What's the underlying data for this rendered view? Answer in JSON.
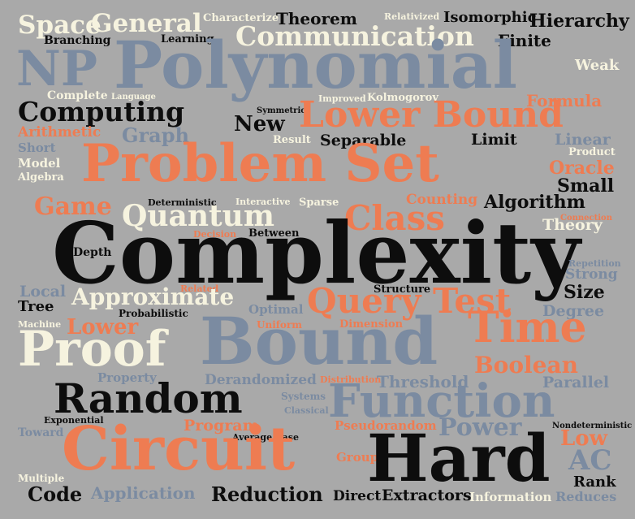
{
  "palette": {
    "background": "#a9a9a9",
    "black": "#0d0d0d",
    "orange": "#ee7c52",
    "slate": "#7b8ba1",
    "cream": "#f6f3df"
  },
  "words": [
    {
      "text": "Space",
      "color": "cream"
    },
    {
      "text": "General",
      "color": "cream"
    },
    {
      "text": "Characterize",
      "color": "cream"
    },
    {
      "text": "Theorem",
      "color": "black"
    },
    {
      "text": "Relativized",
      "color": "cream"
    },
    {
      "text": "Isomorphic",
      "color": "black"
    },
    {
      "text": "Hierarchy",
      "color": "black"
    },
    {
      "text": "Branching",
      "color": "black"
    },
    {
      "text": "Learning",
      "color": "black"
    },
    {
      "text": "Communication",
      "color": "cream"
    },
    {
      "text": "Finite",
      "color": "black"
    },
    {
      "text": "NP",
      "color": "slate"
    },
    {
      "text": "Polynomial",
      "color": "slate"
    },
    {
      "text": "Weak",
      "color": "cream"
    },
    {
      "text": "Complete",
      "color": "cream"
    },
    {
      "text": "Language",
      "color": "cream"
    },
    {
      "text": "Improved",
      "color": "cream"
    },
    {
      "text": "Kolmogorov",
      "color": "cream"
    },
    {
      "text": "Formula",
      "color": "orange"
    },
    {
      "text": "Computing",
      "color": "black"
    },
    {
      "text": "Symmetric",
      "color": "black"
    },
    {
      "text": "New",
      "color": "black"
    },
    {
      "text": "Lower Bound",
      "color": "orange"
    },
    {
      "text": "Arithmetic",
      "color": "orange"
    },
    {
      "text": "Graph",
      "color": "slate"
    },
    {
      "text": "Short",
      "color": "slate"
    },
    {
      "text": "Result",
      "color": "cream"
    },
    {
      "text": "Separable",
      "color": "black"
    },
    {
      "text": "Limit",
      "color": "black"
    },
    {
      "text": "Linear",
      "color": "slate"
    },
    {
      "text": "Model",
      "color": "cream"
    },
    {
      "text": "Product",
      "color": "cream"
    },
    {
      "text": "Algebra",
      "color": "cream"
    },
    {
      "text": "Problem Set",
      "color": "orange"
    },
    {
      "text": "Oracle",
      "color": "orange"
    },
    {
      "text": "Small",
      "color": "black"
    },
    {
      "text": "Deterministic",
      "color": "black"
    },
    {
      "text": "Interactive",
      "color": "cream"
    },
    {
      "text": "Sparse",
      "color": "cream"
    },
    {
      "text": "Counting",
      "color": "orange"
    },
    {
      "text": "Algorithm",
      "color": "black"
    },
    {
      "text": "Game",
      "color": "orange"
    },
    {
      "text": "Quantum",
      "color": "cream"
    },
    {
      "text": "Class",
      "color": "orange"
    },
    {
      "text": "Connection",
      "color": "orange"
    },
    {
      "text": "Theory",
      "color": "cream"
    },
    {
      "text": "Decision",
      "color": "orange"
    },
    {
      "text": "Between",
      "color": "black"
    },
    {
      "text": "Depth",
      "color": "black"
    },
    {
      "text": "Complexity",
      "color": "black"
    },
    {
      "text": "Repetition",
      "color": "slate"
    },
    {
      "text": "Strong",
      "color": "slate"
    },
    {
      "text": "Local",
      "color": "slate"
    },
    {
      "text": "Related",
      "color": "orange"
    },
    {
      "text": "Structure",
      "color": "black"
    },
    {
      "text": "Size",
      "color": "black"
    },
    {
      "text": "Approximate",
      "color": "cream"
    },
    {
      "text": "Query Test",
      "color": "orange"
    },
    {
      "text": "Tree",
      "color": "black"
    },
    {
      "text": "Probabilistic",
      "color": "black"
    },
    {
      "text": "Optimal",
      "color": "slate"
    },
    {
      "text": "Degree",
      "color": "slate"
    },
    {
      "text": "Machine",
      "color": "cream"
    },
    {
      "text": "Uniform",
      "color": "orange"
    },
    {
      "text": "Dimension",
      "color": "orange"
    },
    {
      "text": "Lower",
      "color": "orange"
    },
    {
      "text": "Time",
      "color": "orange"
    },
    {
      "text": "Proof",
      "color": "cream"
    },
    {
      "text": "Bound",
      "color": "slate"
    },
    {
      "text": "Boolean",
      "color": "orange"
    },
    {
      "text": "Property",
      "color": "slate"
    },
    {
      "text": "Derandomized",
      "color": "slate"
    },
    {
      "text": "Distribution",
      "color": "orange"
    },
    {
      "text": "Threshold",
      "color": "slate"
    },
    {
      "text": "Parallel",
      "color": "slate"
    },
    {
      "text": "Random",
      "color": "black"
    },
    {
      "text": "Systems",
      "color": "slate"
    },
    {
      "text": "Function",
      "color": "slate"
    },
    {
      "text": "Exponential",
      "color": "black"
    },
    {
      "text": "Classical",
      "color": "slate"
    },
    {
      "text": "Toward",
      "color": "slate"
    },
    {
      "text": "Program",
      "color": "orange"
    },
    {
      "text": "Pseudorandom",
      "color": "orange"
    },
    {
      "text": "Power",
      "color": "slate"
    },
    {
      "text": "Nondeterministic",
      "color": "black"
    },
    {
      "text": "Low",
      "color": "orange"
    },
    {
      "text": "Average Case",
      "color": "black"
    },
    {
      "text": "Circuit",
      "color": "orange"
    },
    {
      "text": "Group",
      "color": "orange"
    },
    {
      "text": "Hard",
      "color": "black"
    },
    {
      "text": "AC",
      "color": "slate"
    },
    {
      "text": "Multiple",
      "color": "cream"
    },
    {
      "text": "Rank",
      "color": "black"
    },
    {
      "text": "Code",
      "color": "black"
    },
    {
      "text": "Application",
      "color": "slate"
    },
    {
      "text": "Reduction",
      "color": "black"
    },
    {
      "text": "Direct",
      "color": "black"
    },
    {
      "text": "Extractors",
      "color": "black"
    },
    {
      "text": "Information",
      "color": "cream"
    },
    {
      "text": "Reduces",
      "color": "slate"
    }
  ]
}
